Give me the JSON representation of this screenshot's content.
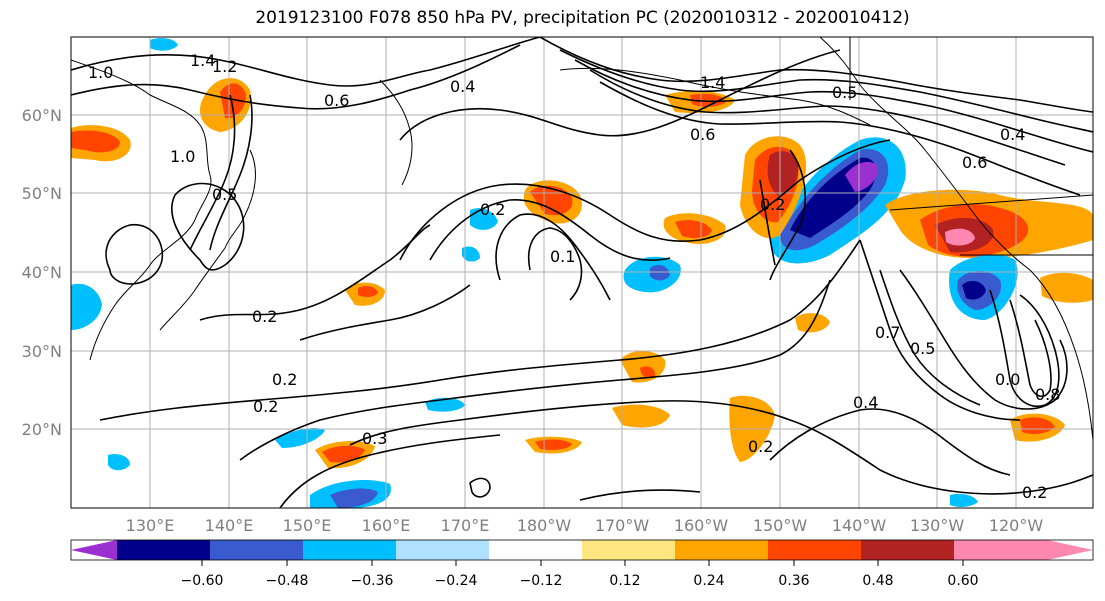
{
  "title": "2019123100 F078 850 hPa PV, precipitation PC (2020010312 - 2020010412)",
  "lat_labels": [
    "60°N",
    "50°N",
    "40°N",
    "30°N",
    "20°N"
  ],
  "lon_labels": [
    "130°E",
    "140°E",
    "150°E",
    "160°E",
    "170°E",
    "180°W",
    "170°W",
    "160°W",
    "150°W",
    "140°W",
    "130°W",
    "120°W"
  ],
  "colorbar": {
    "ticks": [
      "−0.60",
      "−0.48",
      "−0.36",
      "−0.24",
      "−0.12",
      "0.12",
      "0.24",
      "0.36",
      "0.48",
      "0.60"
    ],
    "colors": [
      "#9b30d0",
      "#00008b",
      "#3a5bd0",
      "#00bfff",
      "#b0e0ff",
      "#ffffff",
      "#ffe680",
      "#ffa500",
      "#ff4500",
      "#b22222",
      "#ff88b0",
      "#ff88b0"
    ]
  },
  "contour_labels": [
    "1.4",
    "1.2",
    "1.0",
    "0.6",
    "0.4",
    "1.4",
    "0.6",
    "0.5",
    "1.0",
    "0.5",
    "0.6",
    "0.4",
    "0.2",
    "0.2",
    "0.1",
    "0.2",
    "0.2",
    "0.2",
    "0.3",
    "0.7",
    "0.5",
    "0.8",
    "0.0",
    "0.4",
    "0.2",
    "0.2"
  ],
  "colors": {
    "contour": "#000000",
    "grid": "#b0b0b0",
    "coast": "#000000",
    "label": "#808080"
  }
}
